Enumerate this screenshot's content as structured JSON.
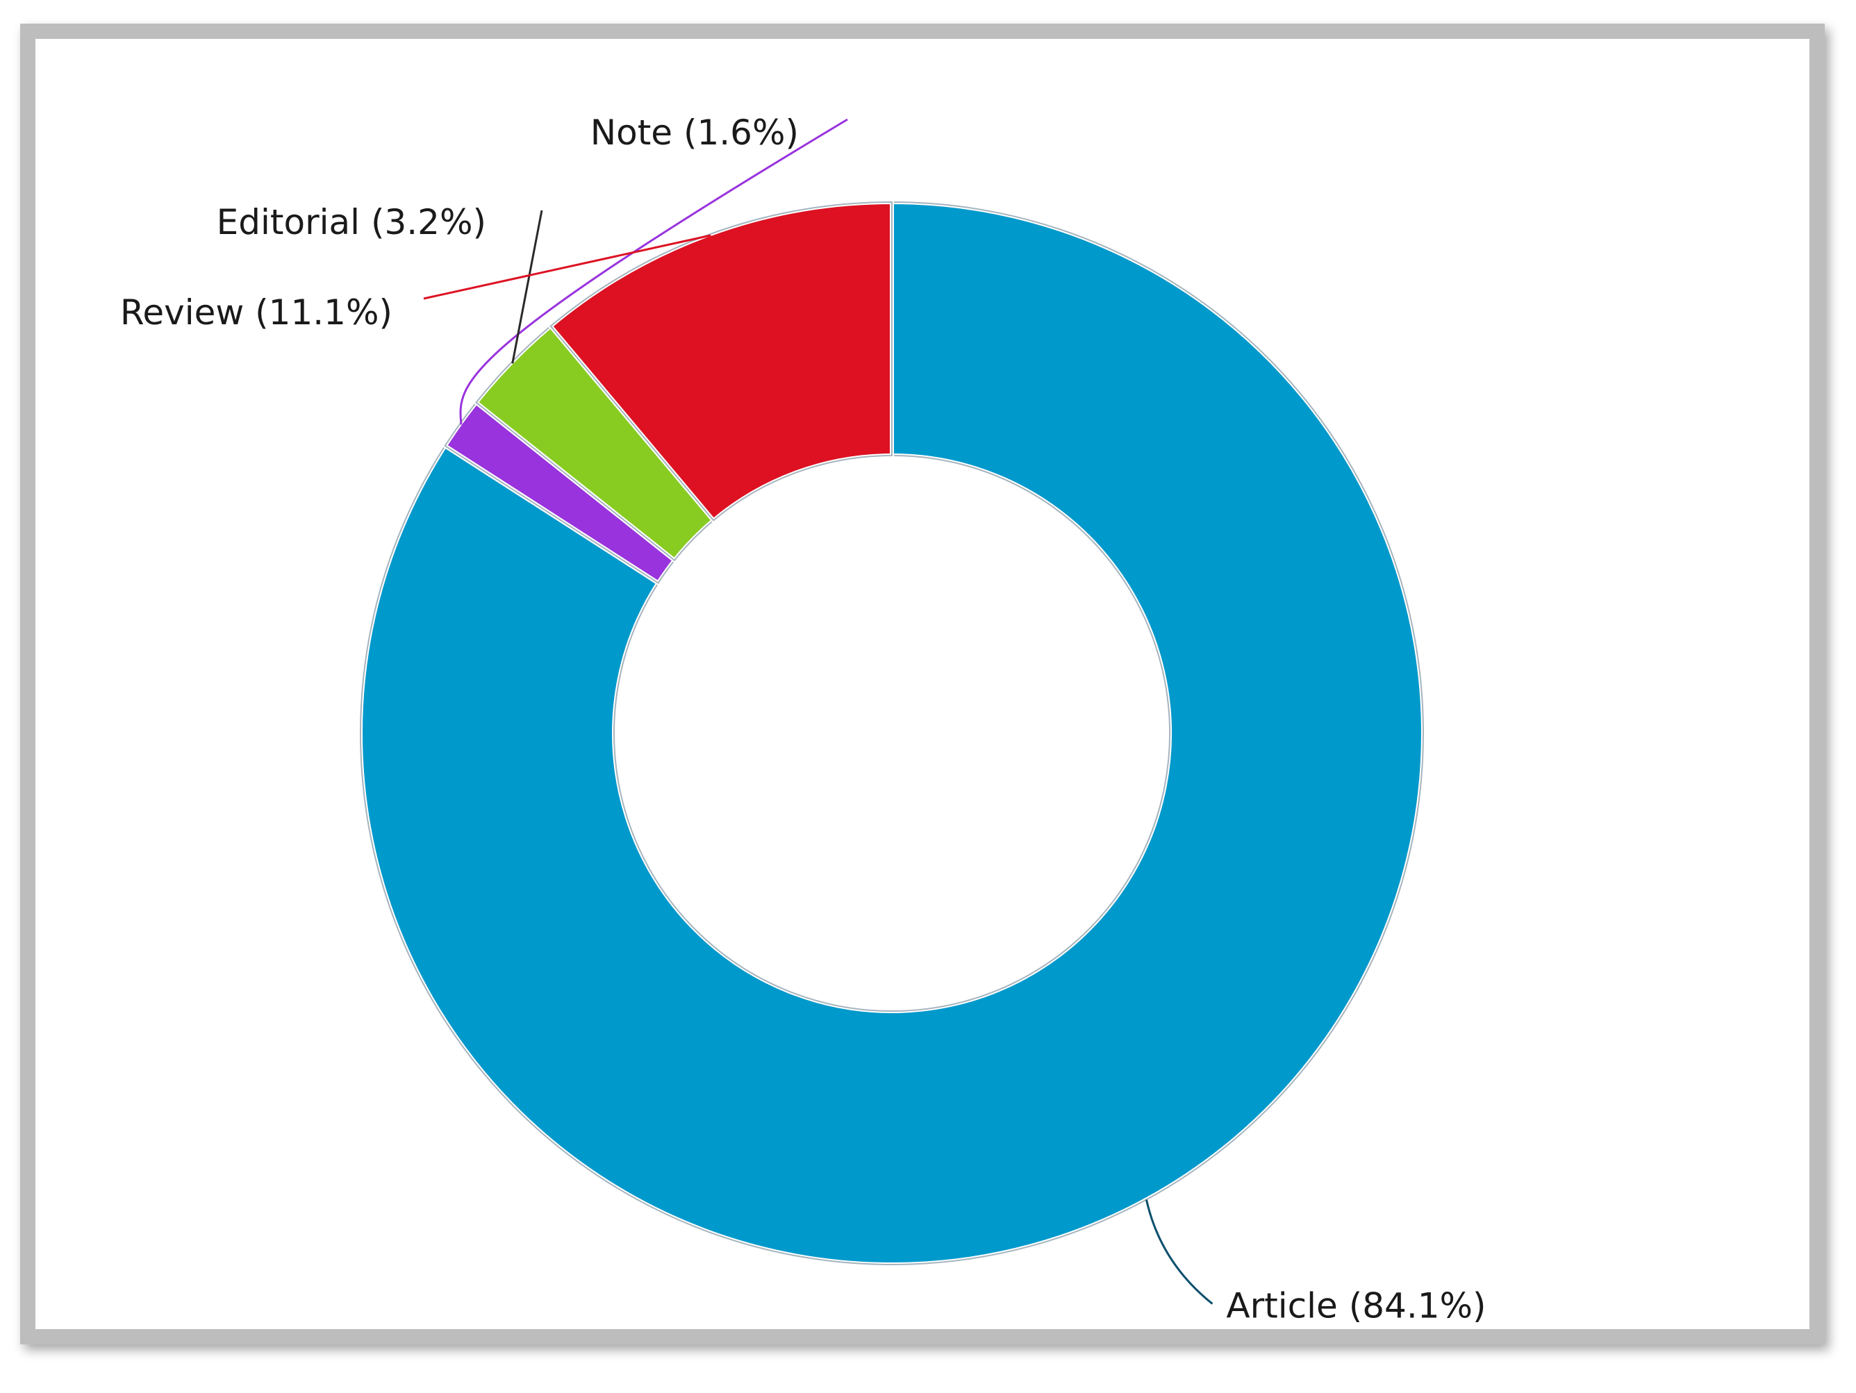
{
  "chart_data": {
    "type": "pie",
    "title": "",
    "donut": true,
    "slices": [
      {
        "label": "Article (84.1%)",
        "category": "Article",
        "value": 84.1,
        "color": "#0099cc"
      },
      {
        "label": "Note (1.6%)",
        "category": "Note",
        "value": 1.6,
        "color": "#9933dd"
      },
      {
        "label": "Editorial (3.2%)",
        "category": "Editorial",
        "value": 3.2,
        "color": "#88cc22"
      },
      {
        "label": "Review (11.1%)",
        "category": "Review",
        "value": 11.1,
        "color": "#dd1122"
      }
    ]
  }
}
